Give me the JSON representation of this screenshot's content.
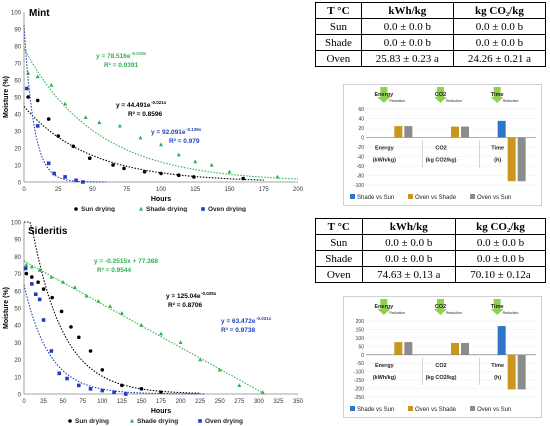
{
  "mint": {
    "chart_data": {
      "type": "scatter",
      "title": "Mint",
      "xlabel": "Hours",
      "ylabel": "Moisture (%)",
      "xlim": [
        0,
        200
      ],
      "ylim": [
        0,
        100
      ],
      "xticks": [
        "0",
        "25",
        "50",
        "75",
        "100",
        "125",
        "150",
        "175",
        "200"
      ],
      "yticks": [
        "0",
        "10",
        "20",
        "30",
        "40",
        "50",
        "60",
        "70",
        "80",
        "90",
        "100"
      ],
      "grid": false,
      "legend": "bottom",
      "series": [
        {
          "name": "Sun drying",
          "color": "#000000",
          "marker": "circle",
          "x": [
            3,
            10,
            18,
            25,
            36,
            48,
            65,
            73,
            88,
            100,
            113,
            124,
            160
          ],
          "y": [
            50,
            48,
            37,
            27,
            21,
            14,
            10,
            8,
            6,
            5,
            4,
            3,
            2
          ],
          "fit": {
            "kind": "exp",
            "a": 44.491,
            "b": -0.021
          },
          "equation": "y = 44.491e",
          "exponent": "-0.021x",
          "r2": "R² = 0.8596"
        },
        {
          "name": "Shade drying",
          "color": "#2fb14f",
          "marker": "triangle",
          "x": [
            3,
            10,
            20,
            30,
            45,
            55,
            70,
            85,
            100,
            113,
            125,
            137,
            150,
            185
          ],
          "y": [
            64,
            62,
            57,
            46,
            38,
            35,
            33,
            26,
            22,
            16,
            12,
            10,
            6,
            3
          ],
          "fit": {
            "kind": "exp",
            "a": 78.516,
            "b": -0.019
          },
          "equation": "y = 78.516e",
          "exponent": "-0.019x",
          "r2": "R² = 0.9391"
        },
        {
          "name": "Oven drying",
          "color": "#1f3fbf",
          "marker": "square",
          "x": [
            2,
            10,
            18,
            22,
            30,
            38,
            43
          ],
          "y": [
            55,
            33,
            11,
            5,
            3,
            1,
            0
          ],
          "fit": {
            "kind": "exp",
            "a": 92.091,
            "b": -0.139
          },
          "equation": "y = 92.091e",
          "exponent": "-0.139x",
          "r2": "R² = 0.979"
        }
      ]
    },
    "table": {
      "headers": [
        "T °C",
        "kWh/kg",
        "kg CO₂/kg"
      ],
      "rows": [
        [
          "Sun",
          "0.0 ± 0.0 b",
          "0.0 ± 0.0 b"
        ],
        [
          "Shade",
          "0.0 ± 0.0 b",
          "0.0 ± 0.0 b"
        ],
        [
          "Oven",
          "25.83 ± 0.23 a",
          "24.26 ± 0.21 a"
        ]
      ]
    },
    "bar_chart": {
      "type": "bar",
      "ylim": [
        -100,
        60
      ],
      "yticks": [
        "-100",
        "-80",
        "-60",
        "-40",
        "-20",
        "0",
        "20",
        "40",
        "60"
      ],
      "categories": [
        "Energy",
        "CO2",
        "Time"
      ],
      "category_units": [
        "(kWh/kg)",
        "(kg CO2/kg)",
        "(h)"
      ],
      "top_icons": [
        {
          "label": "Energy",
          "sub": "Reduction"
        },
        {
          "label": "CO2",
          "sub": "Reduction"
        },
        {
          "label": "Time",
          "sub": "Reduction"
        }
      ],
      "series": [
        {
          "name": "Shade vs Sun",
          "color": "#2e75c7",
          "values": [
            0,
            0,
            35
          ]
        },
        {
          "name": "Oven vs Shade",
          "color": "#c9971c",
          "values": [
            24,
            23,
            -92
          ]
        },
        {
          "name": "Oven vs Sun",
          "color": "#8c8c8c",
          "values": [
            24,
            23,
            -92
          ]
        }
      ],
      "legend": "bottom"
    }
  },
  "sideritis": {
    "chart_data": {
      "type": "scatter",
      "title": "Sideritis",
      "xlabel": "Hours",
      "ylabel": "Moisture (%)",
      "xlim": [
        0,
        350
      ],
      "ylim": [
        0,
        100
      ],
      "xticks": [
        "0",
        "25",
        "50",
        "75",
        "100",
        "125",
        "150",
        "175",
        "200",
        "225",
        "250",
        "275",
        "300",
        "325",
        "350"
      ],
      "yticks": [
        "0",
        "10",
        "20",
        "30",
        "40",
        "50",
        "60",
        "70",
        "80",
        "90",
        "100"
      ],
      "grid": false,
      "legend": "bottom",
      "series": [
        {
          "name": "Sun drying",
          "color": "#000000",
          "marker": "circle",
          "x": [
            3,
            10,
            18,
            25,
            36,
            48,
            60,
            70,
            85,
            100,
            125,
            150,
            175
          ],
          "y": [
            70,
            68,
            65,
            61,
            56,
            48,
            39,
            33,
            25,
            14,
            5,
            3,
            1
          ],
          "fit": {
            "kind": "exp",
            "a": 125.04,
            "b": -0.025
          },
          "equation": "y = 125.04e",
          "exponent": "-0.025x",
          "r2": "R² = 0.8706"
        },
        {
          "name": "Shade drying",
          "color": "#2fb14f",
          "marker": "triangle",
          "x": [
            3,
            10,
            20,
            35,
            50,
            65,
            80,
            95,
            110,
            125,
            150,
            175,
            200,
            225,
            250,
            275,
            305
          ],
          "y": [
            75,
            74,
            72,
            68,
            65,
            62,
            57,
            54,
            51,
            47,
            40,
            35,
            30,
            20,
            14,
            5,
            1
          ],
          "fit": {
            "kind": "lin",
            "m": -0.2515,
            "c": 77.368
          },
          "equation": "y = -0.2515x + 77.368",
          "exponent": "",
          "r2": "R² = 0.9544"
        },
        {
          "name": "Oven drying",
          "color": "#1f3fbf",
          "marker": "square",
          "x": [
            2,
            10,
            15,
            20,
            25,
            35,
            45,
            55,
            70,
            85,
            100,
            115,
            130
          ],
          "y": [
            73,
            64,
            58,
            55,
            43,
            25,
            12,
            9,
            5,
            3,
            2,
            1,
            0
          ],
          "fit": {
            "kind": "exp",
            "a": 63.472,
            "b": -0.031
          },
          "equation": "y = 63.472e",
          "exponent": "-0.031x",
          "r2": "R² = 0.9738"
        }
      ]
    },
    "table": {
      "headers": [
        "T °C",
        "kWh/kg",
        "kg CO₂/kg"
      ],
      "rows": [
        [
          "Sun",
          "0.0 ± 0.0 b",
          "0.0 ± 0.0 b"
        ],
        [
          "Shade",
          "0.0 ± 0.0 b",
          "0.0 ± 0.0 b"
        ],
        [
          "Oven",
          "74.63 ± 0.13 a",
          "70.10 ± 0.12a"
        ]
      ]
    },
    "bar_chart": {
      "type": "bar",
      "ylim": [
        -250,
        200
      ],
      "yticks": [
        "-250",
        "-200",
        "-150",
        "-100",
        "-50",
        "0",
        "50",
        "100",
        "150",
        "200"
      ],
      "categories": [
        "Energy",
        "CO2",
        "Time"
      ],
      "category_units": [
        "(kWh/kg)",
        "(kg CO2/kg)",
        "(h)"
      ],
      "top_icons": [
        {
          "label": "Energy",
          "sub": "Reduction"
        },
        {
          "label": "CO2",
          "sub": "Reduction"
        },
        {
          "label": "Time",
          "sub": "Reduction"
        }
      ],
      "series": [
        {
          "name": "Shade vs Sun",
          "color": "#2e75c7",
          "values": [
            0,
            0,
            170
          ]
        },
        {
          "name": "Oven vs Shade",
          "color": "#c9971c",
          "values": [
            75,
            70,
            -205
          ]
        },
        {
          "name": "Oven vs Sun",
          "color": "#8c8c8c",
          "values": [
            75,
            70,
            -205
          ]
        }
      ],
      "legend": "bottom"
    }
  }
}
